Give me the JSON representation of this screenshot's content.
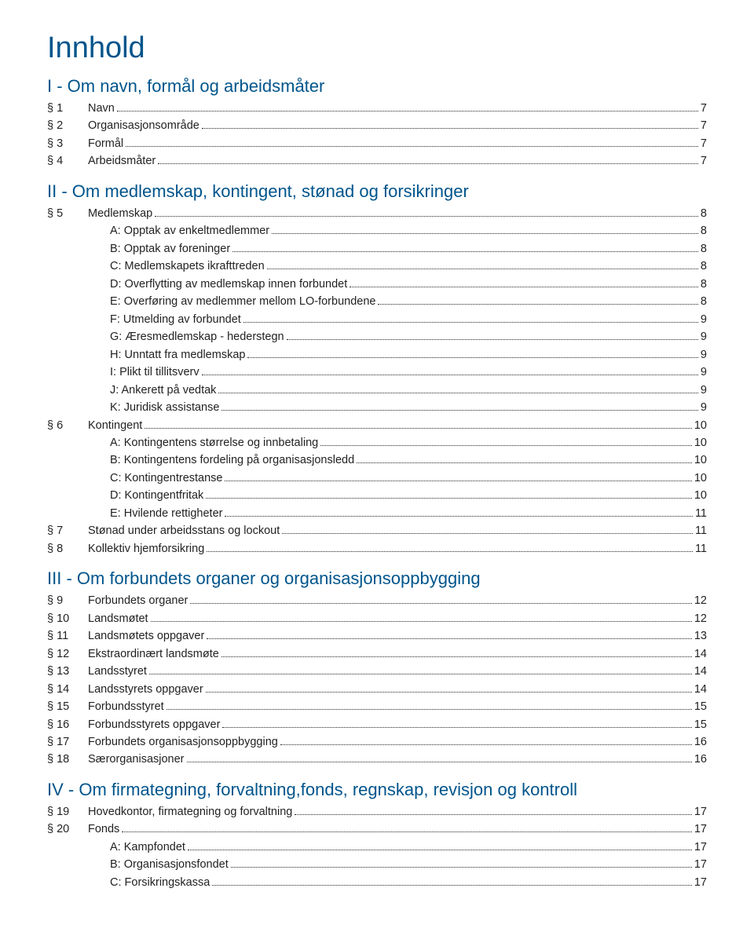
{
  "colors": {
    "heading": "#00558c",
    "text": "#222222",
    "background": "#ffffff"
  },
  "title": "Innhold",
  "sections": [
    {
      "heading": "I - Om navn, formål og arbeidsmåter",
      "items": [
        {
          "prefix": "§ 1",
          "label": "Navn",
          "page": "7"
        },
        {
          "prefix": "§ 2",
          "label": "Organisasjonsområde",
          "page": "7"
        },
        {
          "prefix": "§ 3",
          "label": "Formål",
          "page": "7"
        },
        {
          "prefix": "§ 4",
          "label": "Arbeidsmåter",
          "page": "7"
        }
      ]
    },
    {
      "heading": "II - Om medlemskap, kontingent, stønad og forsikringer",
      "items": [
        {
          "prefix": "§ 5",
          "label": "Medlemskap",
          "page": "8",
          "sub": [
            {
              "label": "A: Opptak av enkeltmedlemmer",
              "page": "8"
            },
            {
              "label": "B: Opptak av foreninger",
              "page": "8"
            },
            {
              "label": "C: Medlemskapets ikrafttreden",
              "page": "8"
            },
            {
              "label": "D: Overflytting av medlemskap innen forbundet",
              "page": "8"
            },
            {
              "label": "E: Overføring av medlemmer mellom LO-forbundene",
              "page": "8"
            },
            {
              "label": "F: Utmelding av forbundet",
              "page": "9"
            },
            {
              "label": "G: Æresmedlemskap - hederstegn",
              "page": "9"
            },
            {
              "label": "H: Unntatt fra medlemskap",
              "page": "9"
            },
            {
              "label": "I:  Plikt til tillitsverv",
              "page": "9"
            },
            {
              "label": "J:  Ankerett på vedtak",
              "page": "9"
            },
            {
              "label": "K: Juridisk assistanse",
              "page": "9"
            }
          ]
        },
        {
          "prefix": "§ 6",
          "label": "Kontingent",
          "page": "10",
          "sub": [
            {
              "label": "A: Kontingentens størrelse og innbetaling",
              "page": "10"
            },
            {
              "label": "B: Kontingentens fordeling på organisasjonsledd",
              "page": "10"
            },
            {
              "label": "C: Kontingentrestanse",
              "page": "10"
            },
            {
              "label": "D: Kontingentfritak",
              "page": "10"
            },
            {
              "label": "E: Hvilende rettigheter",
              "page": "11"
            }
          ]
        },
        {
          "prefix": "§ 7",
          "label": "Stønad under arbeidsstans og lockout",
          "page": "11"
        },
        {
          "prefix": "§ 8",
          "label": "Kollektiv hjemforsikring",
          "page": "11"
        }
      ]
    },
    {
      "heading": "III - Om forbundets organer og organisasjonsoppbygging",
      "items": [
        {
          "prefix": "§ 9",
          "label": "Forbundets organer",
          "page": "12"
        },
        {
          "prefix": "§ 10",
          "label": "Landsmøtet",
          "page": "12"
        },
        {
          "prefix": "§ 11",
          "label": "Landsmøtets oppgaver",
          "page": "13"
        },
        {
          "prefix": "§ 12",
          "label": "Ekstraordinært landsmøte",
          "page": "14"
        },
        {
          "prefix": "§ 13",
          "label": "Landsstyret",
          "page": "14"
        },
        {
          "prefix": "§ 14",
          "label": "Landsstyrets oppgaver",
          "page": "14"
        },
        {
          "prefix": "§ 15",
          "label": "Forbundsstyret",
          "page": "15"
        },
        {
          "prefix": "§ 16",
          "label": "Forbundsstyrets oppgaver",
          "page": "15"
        },
        {
          "prefix": "§ 17",
          "label": "Forbundets organisasjonsoppbygging",
          "page": "16"
        },
        {
          "prefix": "§ 18",
          "label": "Særorganisasjoner",
          "page": "16"
        }
      ]
    },
    {
      "heading": "IV - Om firmategning, forvaltning,fonds, regnskap, revisjon og kontroll",
      "items": [
        {
          "prefix": "§ 19",
          "label": "Hovedkontor, firmategning og forvaltning",
          "page": "17"
        },
        {
          "prefix": "§ 20",
          "label": "Fonds",
          "page": "17",
          "sub": [
            {
              "label": "A: Kampfondet",
              "page": "17"
            },
            {
              "label": "B: Organisasjonsfondet",
              "page": "17"
            },
            {
              "label": "C: Forsikringskassa",
              "page": "17"
            }
          ]
        }
      ]
    }
  ]
}
